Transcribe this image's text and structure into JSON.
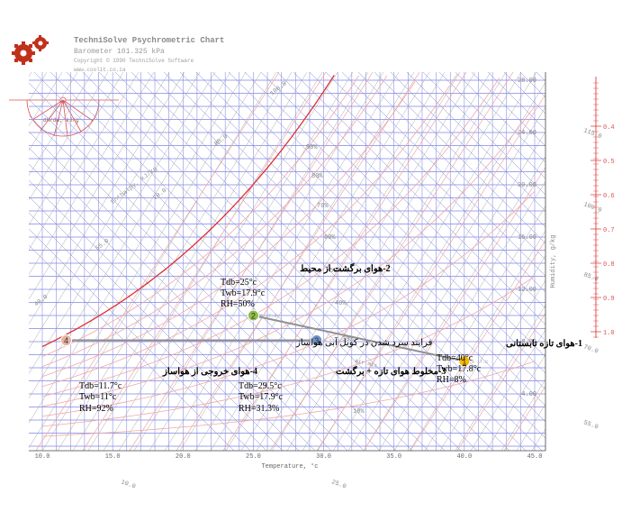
{
  "header": {
    "title": "TechniSolve Psychrometric Chart",
    "barometer": "Barometer 101.325 kPa",
    "copyright": "Copyright © 1990  TechniSolve Software",
    "website": "www.coolit.co.za"
  },
  "colors": {
    "grid_blue": "#7f86e0",
    "grid_gray": "#a8a8a8",
    "saturation_red": "#e03030",
    "enthalpy_pink": "#f0a8a8",
    "axis_red": "#e05050",
    "label_gray": "#8a8a8a",
    "process_line": "#909090",
    "pt1_fill": "#f5b800",
    "pt2_fill": "#8fbe4a",
    "pt3_fill": "#6e93c8",
    "pt4_fill": "#e6b3a4",
    "logo": "#c0301a"
  },
  "chart_data": {
    "type": "scatter",
    "title": "",
    "xlabel": "Temperature, °c",
    "ylabel": "Humidity, g/kg",
    "xlim": [
      10,
      45
    ],
    "ylim": [
      0,
      30
    ],
    "x_ticks": [
      "10.0",
      "15.0",
      "20.0",
      "25.0",
      "30.0",
      "35.0",
      "40.0",
      "45.0"
    ],
    "y_ticks": [
      "4.00",
      "8.00",
      "12.00",
      "16.00",
      "20.00",
      "24.00",
      "28.00"
    ],
    "enthalpy_label": "Enthalpy, kJ/kg",
    "enthalpy_ticks": [
      "10.0",
      "25.0",
      "40.0",
      "55.0",
      "70.0",
      "85.0",
      "100.0",
      "115.0",
      "100.0",
      "85.0",
      "70.0",
      "55.0"
    ],
    "rh_ticks": [
      "10%",
      "30%",
      "40%",
      "50%",
      "60%",
      "70%",
      "80%",
      "90%"
    ],
    "shr_ticks": [
      "0.4",
      "0.5",
      "0.6",
      "0.7",
      "0.8",
      "0.9",
      "1.0"
    ],
    "protractor_label": "dH/dW, kJ/g",
    "mix_label": "Air mix",
    "points": [
      {
        "id": "1",
        "tdb": 40.0,
        "w": 6.5,
        "label": "1-هوای تازه تابستانی",
        "tdb_text": "Tdb=40°c",
        "twb_text": "Twb=17.8°c",
        "rh_text": "RH=8%",
        "small": "0 17.8"
      },
      {
        "id": "2",
        "tdb": 25.0,
        "w": 10.0,
        "label": "2-هوای برگشت از محیط",
        "tdb_text": "Tdb=25°c",
        "twb_text": "Twb=17.9°c",
        "rh_text": "RH=50%",
        "small": "0 17.9"
      },
      {
        "id": "3",
        "tdb": 29.5,
        "w": 8.1,
        "label": "3-مخلوط هوای تازه + برگشت",
        "tdb_text": "Tdb=29.5°c",
        "twb_text": "Twb=17.9°c",
        "rh_text": "RH=31.3%",
        "small": "0 17.9"
      },
      {
        "id": "4",
        "tdb": 11.7,
        "w": 8.1,
        "label": "4-هوای خروجی از هواساز",
        "tdb_text": "Tdb=11.7°c",
        "twb_text": "Twb=11°c",
        "rh_text": "RH=92%",
        "small": "0 11.0"
      }
    ],
    "process_label": "فرایند سرد شدن در کویل آبی هواساز"
  }
}
